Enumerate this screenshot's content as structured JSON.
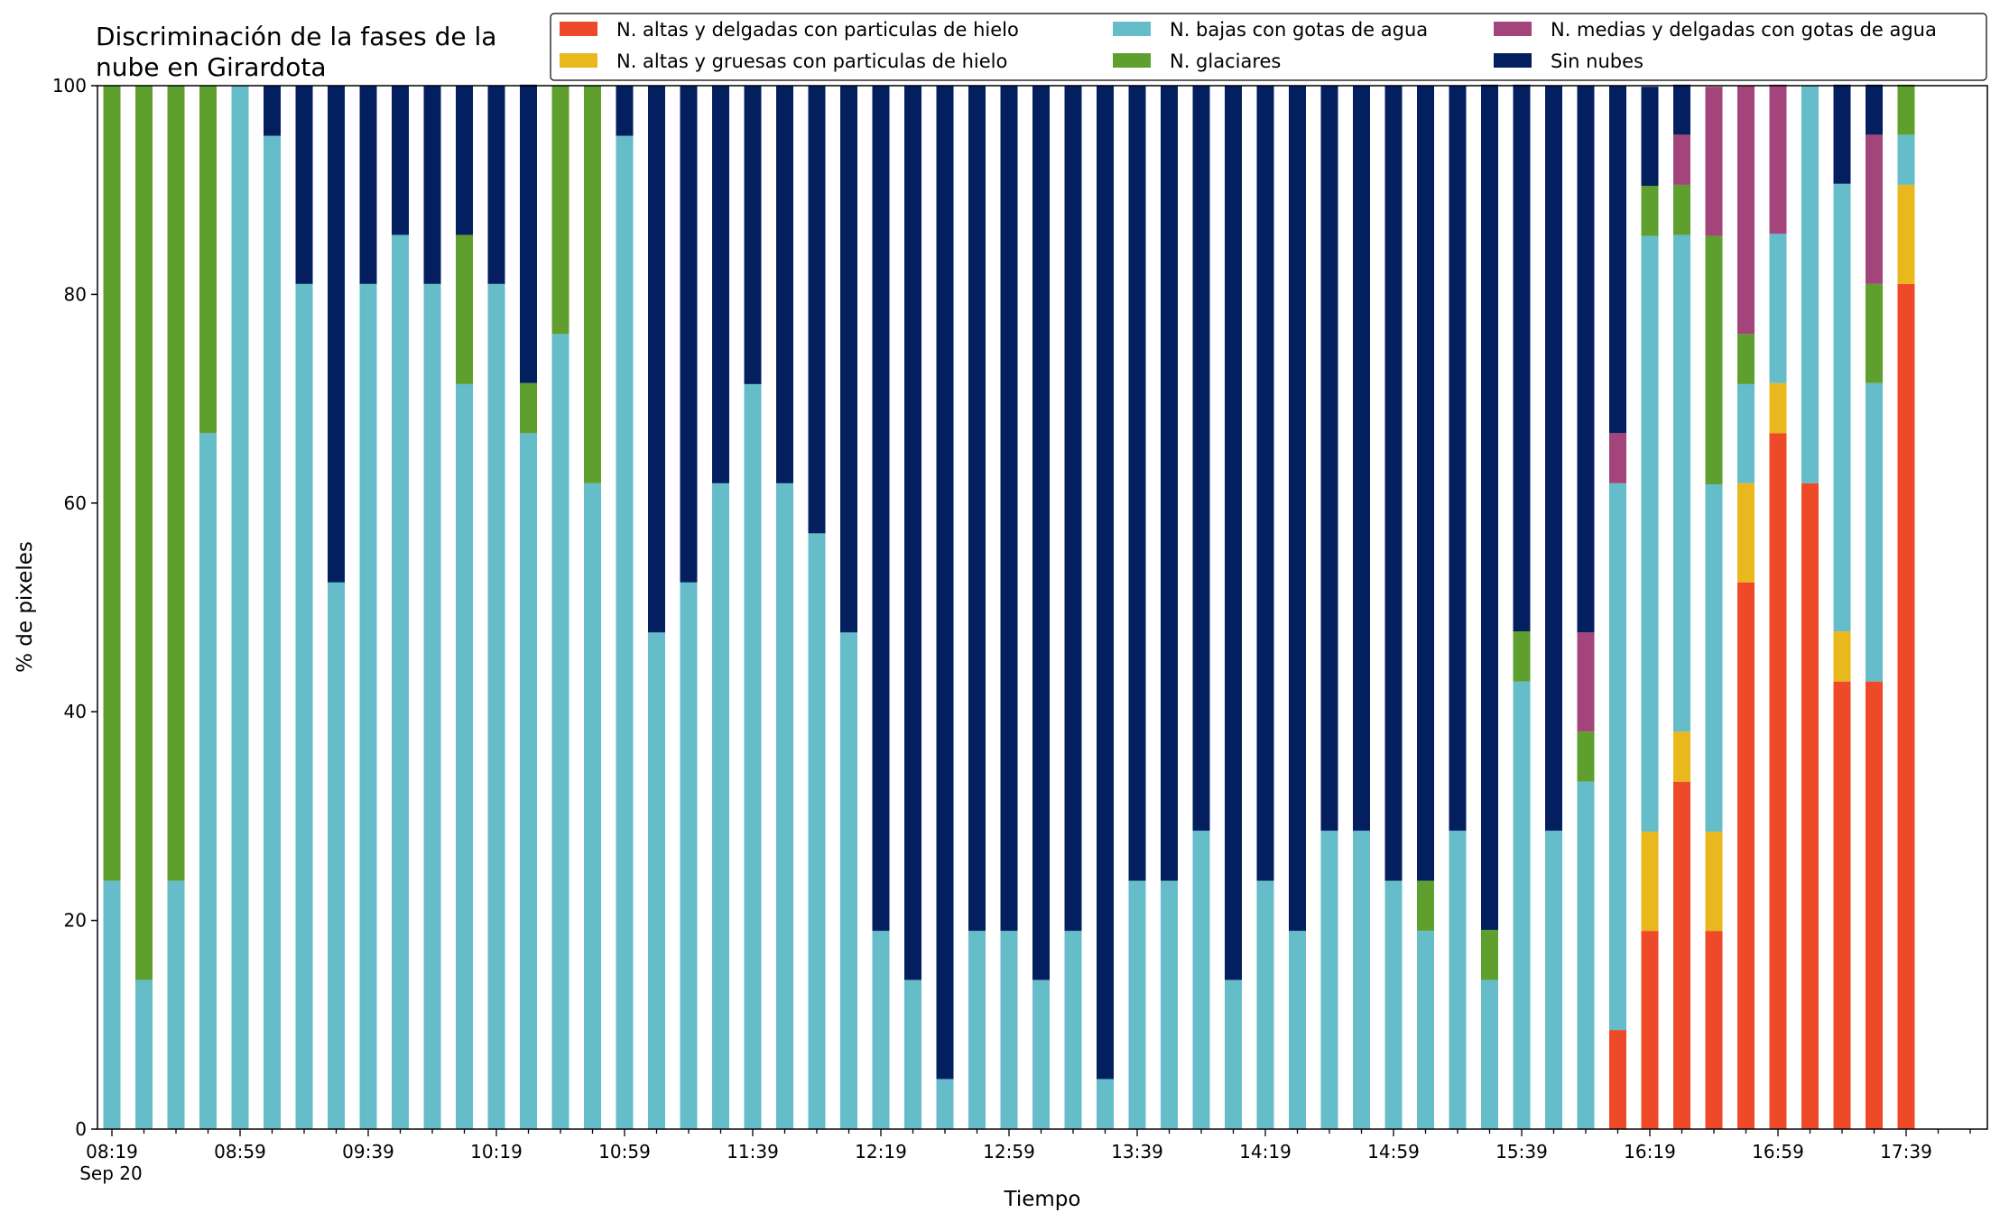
{
  "chart_data": {
    "type": "bar",
    "stacked": true,
    "title_lines": [
      "Discriminación de la fases de la",
      "nube en Girardota"
    ],
    "xlabel": "Tiempo",
    "ylabel": "% de pixeles",
    "ylim": [
      0,
      100
    ],
    "yticks": [
      "0",
      "20",
      "40",
      "60",
      "80",
      "100"
    ],
    "grid": false,
    "legend_position": "top-right",
    "x_sublabel": "Sep 20",
    "x_tick_labels": [
      "08:19",
      "08:59",
      "09:39",
      "10:19",
      "10:59",
      "11:39",
      "12:19",
      "12:59",
      "13:39",
      "14:19",
      "14:59",
      "15:39",
      "16:19",
      "16:59",
      "17:39"
    ],
    "x_tick_label_every": 4,
    "x_minor_tick_count": 59,
    "categories": [
      "08:19",
      "08:29",
      "08:39",
      "08:49",
      "08:59",
      "09:09",
      "09:19",
      "09:29",
      "09:39",
      "09:49",
      "09:59",
      "10:09",
      "10:19",
      "10:29",
      "10:39",
      "10:49",
      "10:59",
      "11:09",
      "11:19",
      "11:29",
      "11:39",
      "11:49",
      "11:59",
      "12:09",
      "12:19",
      "12:29",
      "12:39",
      "12:49",
      "12:59",
      "13:09",
      "13:19",
      "13:29",
      "13:39",
      "13:49",
      "13:59",
      "14:09",
      "14:19",
      "14:29",
      "14:39",
      "14:49",
      "14:59",
      "15:09",
      "15:19",
      "15:29",
      "15:39",
      "15:49",
      "15:59",
      "16:09",
      "16:19",
      "16:29",
      "16:39",
      "16:49",
      "16:59",
      "17:09",
      "17:19",
      "17:29",
      "17:39"
    ],
    "legend": [
      {
        "label": "N. altas y delgadas con particulas de hielo",
        "color": "#ee4a2a"
      },
      {
        "label": "N. altas y gruesas con particulas de hielo",
        "color": "#e8b81c"
      },
      {
        "label": "N. bajas con gotas de agua",
        "color": "#64bdc9"
      },
      {
        "label": "N. glaciares",
        "color": "#5f9f2e"
      },
      {
        "label": "N. medias y delgadas con gotas de agua",
        "color": "#a3457a"
      },
      {
        "label": "Sin nubes",
        "color": "#041f5f"
      }
    ],
    "series": [
      {
        "name": "N. altas y delgadas con particulas de hielo",
        "color": "#ee4a2a",
        "values": [
          0,
          0,
          0,
          0,
          0,
          0,
          0,
          0,
          0,
          0,
          0,
          0,
          0,
          0,
          0,
          0,
          0,
          0,
          0,
          0,
          0,
          0,
          0,
          0,
          0,
          0,
          0,
          0,
          0,
          0,
          0,
          0,
          0,
          0,
          0,
          0,
          0,
          0,
          0,
          0,
          0,
          0,
          0,
          0,
          0,
          0,
          0,
          9.5,
          19,
          33.3,
          19,
          52.4,
          66.7,
          61.9,
          42.9,
          42.9,
          81
        ]
      },
      {
        "name": "N. altas y gruesas con particulas de hielo",
        "color": "#e8b81c",
        "values": [
          0,
          0,
          0,
          0,
          0,
          0,
          0,
          0,
          0,
          0,
          0,
          0,
          0,
          0,
          0,
          0,
          0,
          0,
          0,
          0,
          0,
          0,
          0,
          0,
          0,
          0,
          0,
          0,
          0,
          0,
          0,
          0,
          0,
          0,
          0,
          0,
          0,
          0,
          0,
          0,
          0,
          0,
          0,
          0,
          0,
          0,
          0,
          0,
          9.5,
          4.8,
          9.5,
          9.5,
          4.8,
          0,
          4.8,
          0,
          9.5
        ]
      },
      {
        "name": "N. bajas con gotas de agua",
        "color": "#64bdc9",
        "values": [
          23.8,
          14.3,
          23.8,
          66.7,
          100,
          95.2,
          81,
          52.4,
          81,
          85.7,
          81,
          71.4,
          81,
          66.7,
          76.2,
          61.9,
          95.2,
          47.6,
          52.4,
          61.9,
          71.4,
          61.9,
          57.1,
          47.6,
          19,
          14.3,
          4.8,
          19,
          19,
          14.3,
          19,
          4.8,
          23.8,
          23.8,
          28.6,
          14.3,
          23.8,
          19,
          28.6,
          28.6,
          23.8,
          19,
          28.6,
          14.3,
          42.9,
          28.6,
          33.3,
          52.4,
          57.1,
          47.6,
          33.3,
          9.5,
          14.3,
          38.1,
          42.9,
          28.6,
          4.8
        ]
      },
      {
        "name": "N. glaciares",
        "color": "#5f9f2e",
        "values": [
          76.2,
          85.7,
          76.2,
          33.3,
          0,
          0,
          0,
          0,
          0,
          0,
          0,
          14.3,
          0,
          4.8,
          23.8,
          38.1,
          0,
          0,
          0,
          0,
          0,
          0,
          0,
          0,
          0,
          0,
          0,
          0,
          0,
          0,
          0,
          0,
          0,
          0,
          0,
          0,
          0,
          0,
          0,
          0,
          0,
          4.8,
          0,
          4.8,
          4.8,
          0,
          4.8,
          0,
          4.8,
          4.8,
          23.8,
          4.8,
          0,
          0,
          0,
          9.5,
          4.8
        ]
      },
      {
        "name": "N. medias y delgadas con gotas de agua",
        "color": "#a3457a",
        "values": [
          0,
          0,
          0,
          0,
          0,
          0,
          0,
          0,
          0,
          0,
          0,
          0,
          0,
          0,
          0,
          0,
          0,
          0,
          0,
          0,
          0,
          0,
          0,
          0,
          0,
          0,
          0,
          0,
          0,
          0,
          0,
          0,
          0,
          0,
          0,
          0,
          0,
          0,
          0,
          0,
          0,
          0,
          0,
          0,
          0,
          0,
          9.5,
          4.8,
          0,
          4.8,
          14.3,
          23.8,
          14.3,
          0,
          0,
          14.3,
          0
        ]
      },
      {
        "name": "Sin nubes",
        "color": "#041f5f",
        "values": [
          0,
          0,
          0,
          0,
          0,
          4.8,
          19,
          47.6,
          19,
          14.3,
          19,
          14.3,
          19,
          28.6,
          0,
          0,
          4.8,
          52.4,
          47.6,
          38.1,
          28.6,
          38.1,
          42.9,
          52.4,
          81,
          85.7,
          95.2,
          81,
          81,
          85.7,
          81,
          95.2,
          76.2,
          76.2,
          71.4,
          85.7,
          76.2,
          81,
          71.4,
          71.4,
          76.2,
          76.2,
          71.4,
          81,
          52.4,
          71.4,
          52.4,
          33.3,
          9.5,
          4.8,
          0,
          0,
          0,
          0,
          9.5,
          4.8,
          0
        ]
      }
    ]
  }
}
